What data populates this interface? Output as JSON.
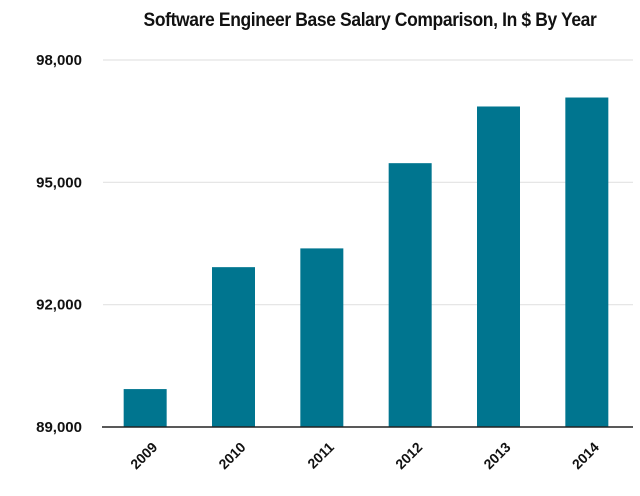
{
  "chart_data": {
    "type": "bar",
    "title": "Software Engineer Base Salary Comparison, In $ By Year",
    "xlabel": "",
    "ylabel": "",
    "categories": [
      "2009",
      "2010",
      "2011",
      "2012",
      "2013",
      "2014"
    ],
    "values": [
      89930,
      92920,
      93380,
      95470,
      96860,
      97080
    ],
    "ylim": [
      89000,
      98000
    ],
    "yticks": [
      89000,
      92000,
      95000,
      98000
    ],
    "ytick_labels": [
      "89,000",
      "92,000",
      "95,000",
      "98,000"
    ],
    "grid": true,
    "legend": "none",
    "bar_color": "#00758f",
    "x_label_rotation": "-45deg"
  }
}
